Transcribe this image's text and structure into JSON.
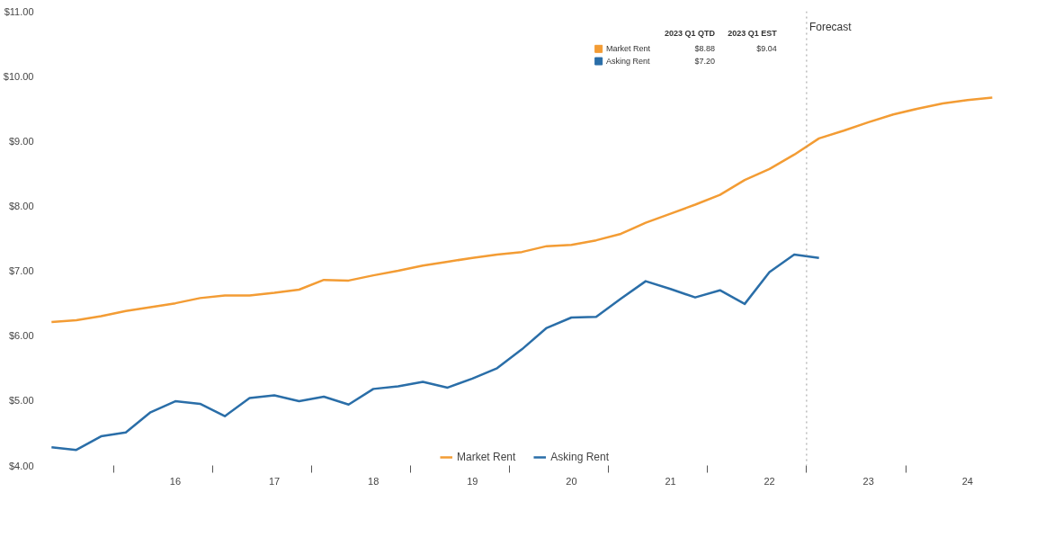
{
  "chart_data": {
    "type": "line",
    "categories": [
      null,
      null,
      null,
      null,
      null,
      "16",
      null,
      null,
      null,
      "17",
      null,
      null,
      null,
      "18",
      null,
      null,
      null,
      "19",
      null,
      null,
      null,
      "20",
      null,
      null,
      null,
      "21",
      null,
      null,
      null,
      "22",
      null,
      null,
      null,
      "23",
      null,
      null,
      null,
      "24",
      null
    ],
    "series": [
      {
        "name": "Market Rent",
        "color": "#f39c34",
        "values": [
          6.21,
          6.24,
          6.3,
          6.38,
          6.44,
          6.5,
          6.58,
          6.62,
          6.62,
          6.66,
          6.71,
          6.86,
          6.85,
          6.93,
          7.0,
          7.08,
          7.14,
          7.2,
          7.25,
          7.29,
          7.38,
          7.4,
          7.47,
          7.57,
          7.74,
          7.88,
          8.02,
          8.17,
          8.4,
          8.57,
          8.79,
          9.04,
          9.16,
          9.29,
          9.41,
          9.5,
          9.58,
          9.63,
          9.67
        ]
      },
      {
        "name": "Asking Rent",
        "color": "#2a6ea8",
        "values": [
          4.28,
          4.24,
          4.45,
          4.51,
          4.82,
          4.99,
          4.95,
          4.76,
          5.04,
          5.08,
          4.99,
          5.06,
          4.94,
          5.18,
          5.22,
          5.29,
          5.2,
          5.34,
          5.5,
          5.79,
          6.12,
          6.28,
          6.29,
          6.57,
          6.84,
          6.72,
          6.59,
          6.7,
          6.49,
          6.98,
          7.25,
          7.2,
          null,
          null,
          null,
          null,
          null,
          null,
          null
        ]
      }
    ],
    "ylim": [
      4,
      11
    ],
    "yticks": [
      {
        "value": 4,
        "label": "$4.00"
      },
      {
        "value": 5,
        "label": "$5.00"
      },
      {
        "value": 6,
        "label": "$6.00"
      },
      {
        "value": 7,
        "label": "$7.00"
      },
      {
        "value": 8,
        "label": "$8.00"
      },
      {
        "value": 9,
        "label": "$9.00"
      },
      {
        "value": 10,
        "label": "$10.00"
      },
      {
        "value": 11,
        "label": "$11.00"
      }
    ],
    "annotations": [
      "Forecast",
      "2023 Q1 QTD",
      "2023 Q1 EST",
      "$8.88",
      "$9.04",
      "$7.20"
    ],
    "legend": "bottom"
  }
}
